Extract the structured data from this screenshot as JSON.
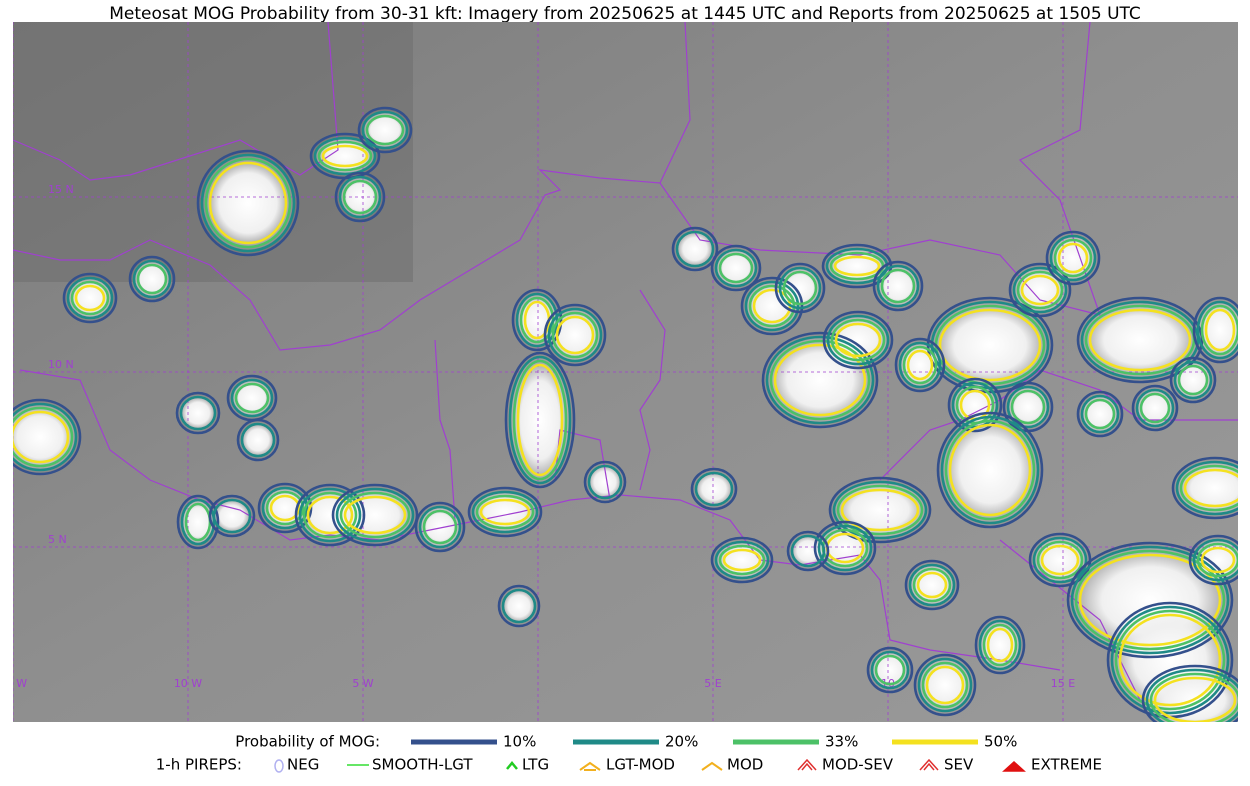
{
  "title": "Meteosat MOG Probability from 30-31 kft: Imagery from 20250625 at 1445 UTC and Reports from 20250625 at 1505 UTC",
  "map": {
    "lat_labels": [
      "15 N",
      "10 N",
      "5 N"
    ],
    "lon_labels": [
      "15 W",
      "10 W",
      "5 W",
      "5 E",
      "10",
      "15 E"
    ]
  },
  "legend": {
    "probability": {
      "label": "Probability of MOG:",
      "items": [
        {
          "label": "10%",
          "color": "#34508c"
        },
        {
          "label": "20%",
          "color": "#1f8a87"
        },
        {
          "label": "33%",
          "color": "#4cc167"
        },
        {
          "label": "50%",
          "color": "#f4e11f"
        }
      ]
    },
    "pireps": {
      "label": "1-h PIREPS:",
      "items": [
        "NEG",
        "SMOOTH-LGT",
        "LTG",
        "LGT-MOD",
        "MOD",
        "MOD-SEV",
        "SEV",
        "EXTREME"
      ]
    }
  }
}
